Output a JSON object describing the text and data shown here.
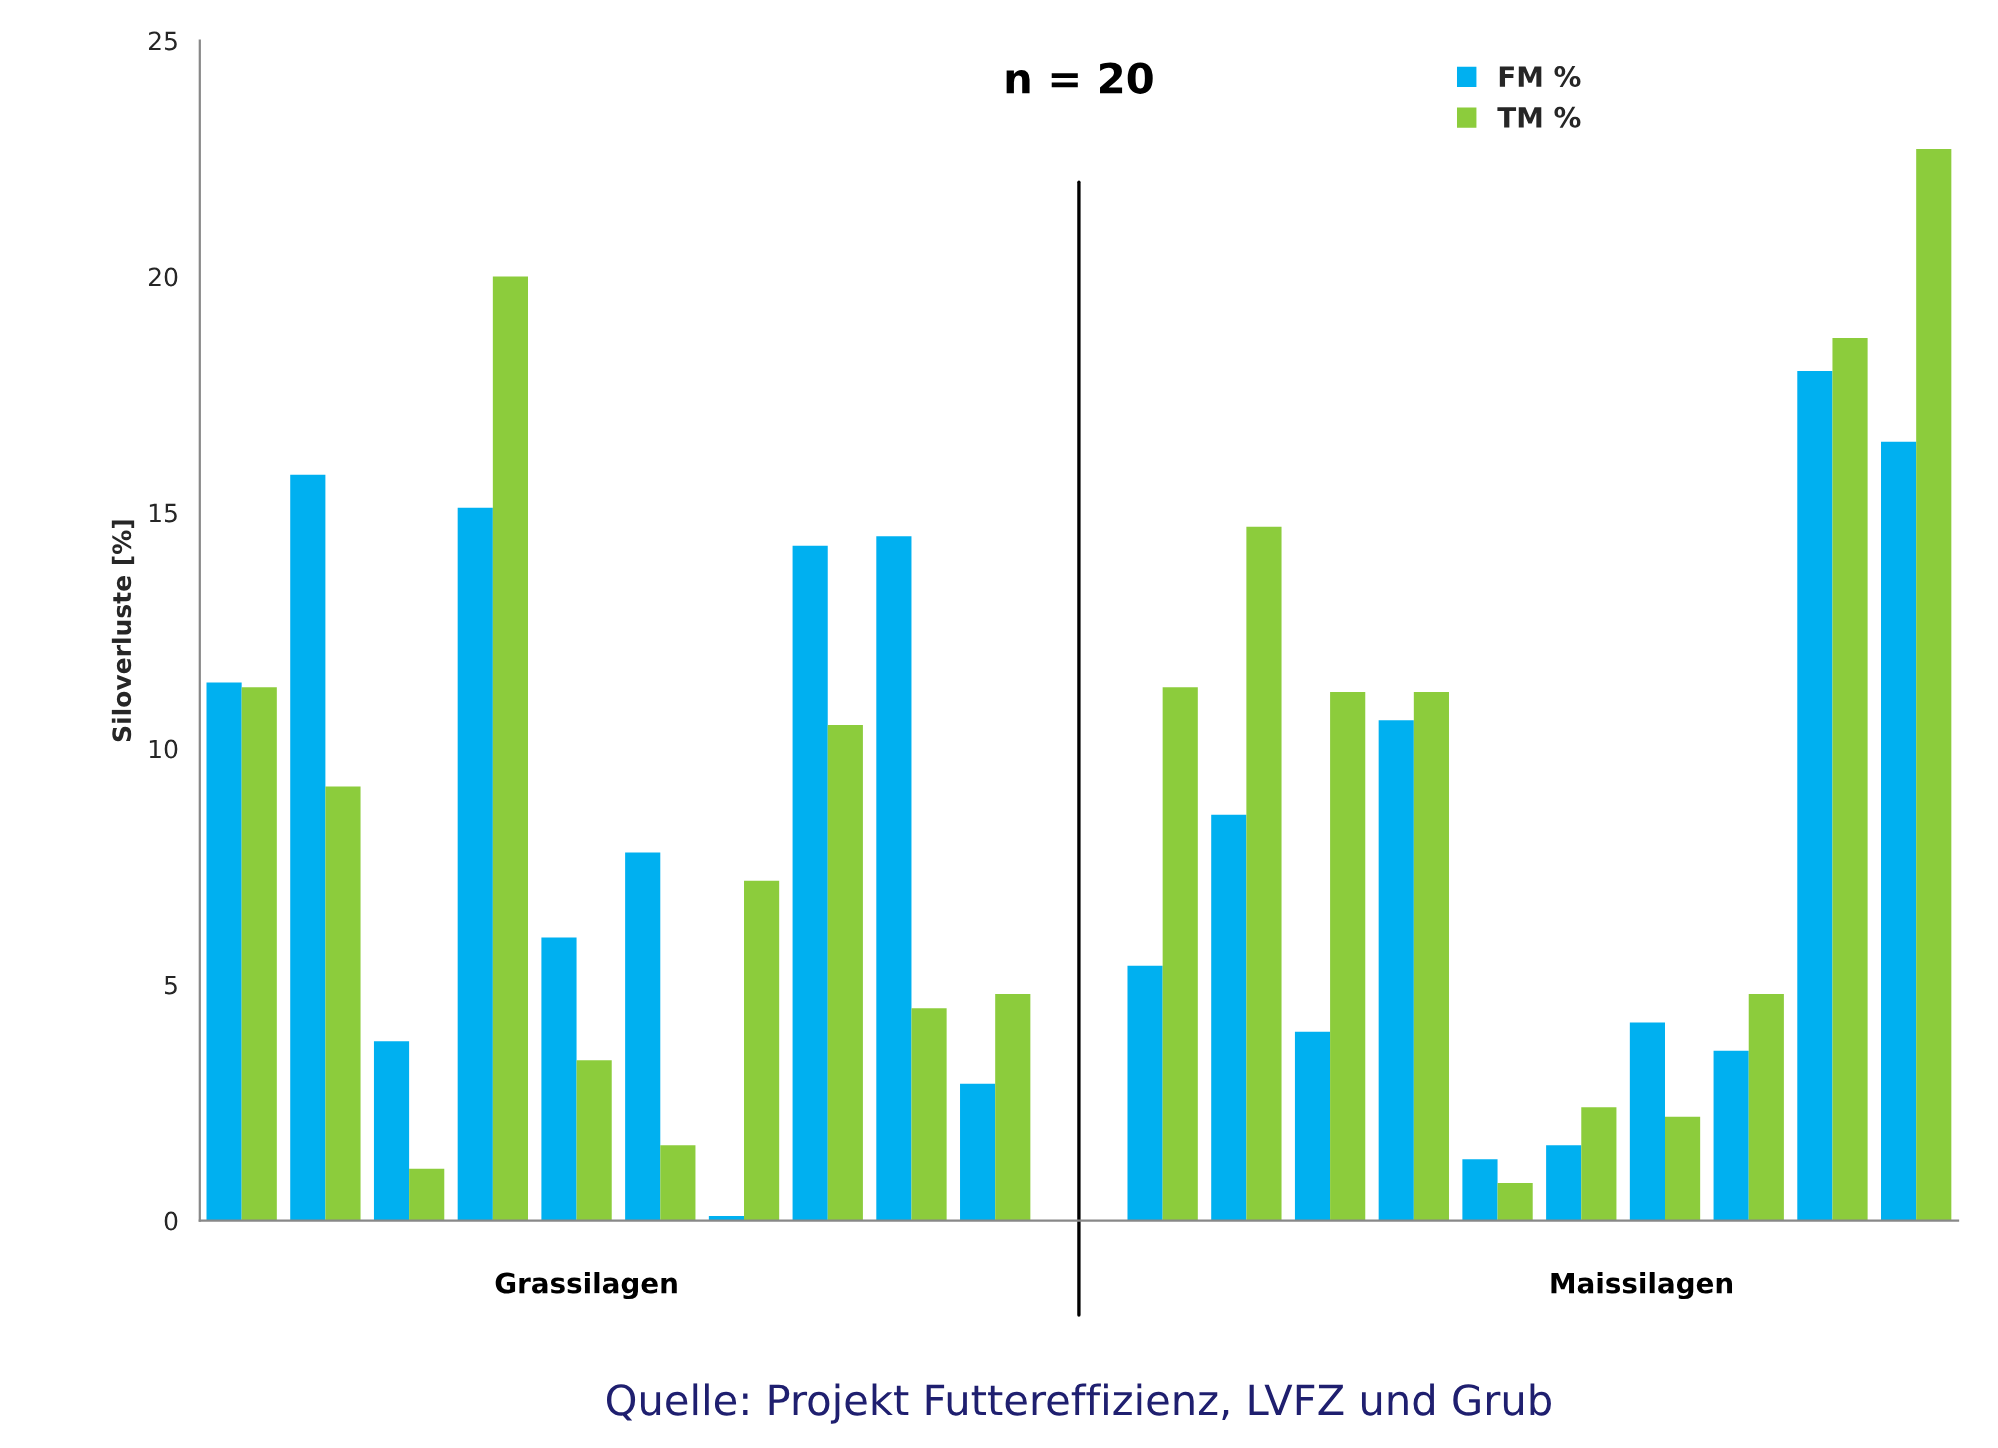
{
  "chart_data": {
    "type": "bar",
    "ylabel": "Siloverluste [%]",
    "categories": [
      null,
      null,
      null,
      null,
      null,
      null,
      null,
      null,
      null,
      null,
      null,
      null,
      null,
      null,
      null,
      null,
      null,
      null,
      null,
      null,
      null
    ],
    "series": [
      {
        "name": "FM %",
        "color": "#00b0f0",
        "values": [
          11.4,
          15.8,
          3.8,
          15.1,
          6.0,
          7.8,
          0.1,
          14.3,
          14.5,
          2.9,
          null,
          5.4,
          8.6,
          4.0,
          10.6,
          1.3,
          1.6,
          4.2,
          3.6,
          18.0,
          16.5
        ]
      },
      {
        "name": "TM %",
        "color": "#8ccc3c",
        "values": [
          11.3,
          9.2,
          1.1,
          20.0,
          3.4,
          1.6,
          7.2,
          10.5,
          4.5,
          4.8,
          null,
          11.3,
          14.7,
          11.2,
          11.2,
          0.8,
          2.4,
          2.2,
          4.8,
          18.7,
          22.7
        ]
      }
    ],
    "ylim": [
      0,
      25
    ],
    "yticks": [
      0,
      5,
      10,
      15,
      20,
      25
    ],
    "grid": false,
    "legend": "top right",
    "tick_labels": "y",
    "annotations": [
      "n = 20",
      "Grassilagen",
      "Maissilagen",
      "Quelle: Projekt Futtereffizienz, LVFZ und Grub"
    ]
  }
}
